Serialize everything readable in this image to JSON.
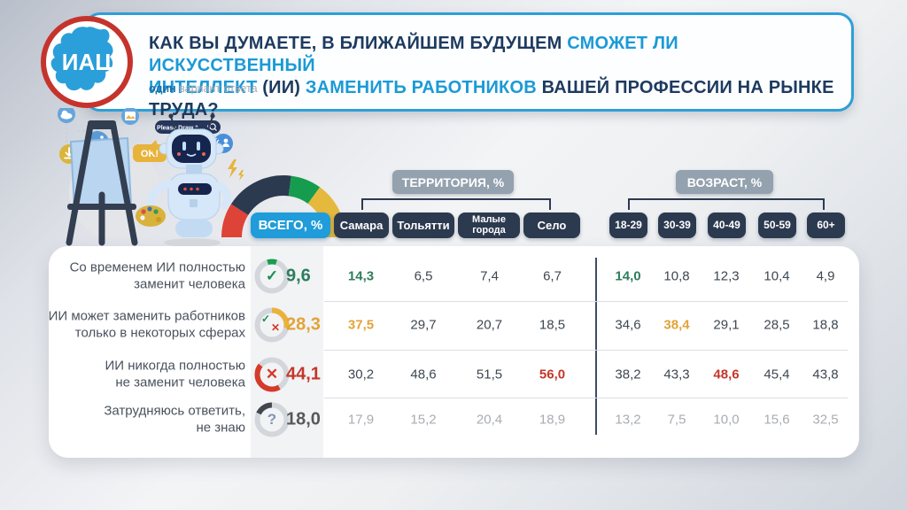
{
  "header": {
    "logo_text": "ИАЦ",
    "question_segments": [
      {
        "text": "КАК ВЫ ДУМАЕТЕ, В БЛИЖАЙШЕМ БУДУЩЕМ ",
        "color": "dark"
      },
      {
        "text": "СМОЖЕТ ЛИ ИСКУССТВЕННЫЙ",
        "color": "blue",
        "br": true
      },
      {
        "text": "ИНТЕЛЛЕКТ ",
        "color": "blue"
      },
      {
        "text": "(ИИ) ",
        "color": "dark"
      },
      {
        "text": "ЗАМЕНИТЬ РАБОТНИКОВ ",
        "color": "blue"
      },
      {
        "text": "ВАШЕЙ ПРОФЕССИИ НА РЫНКЕ ТРУДА?",
        "color": "dark"
      }
    ],
    "subtitle_bold": "один",
    "subtitle_rest": " вариант ответа"
  },
  "illustration": {
    "ok_label": "OK!",
    "search_label": "Please Draw “ ... ”"
  },
  "gauge": {
    "segments": [
      {
        "name": "red",
        "color": "#dd4337",
        "pct": 18
      },
      {
        "name": "navy",
        "color": "#2c3a50",
        "pct": 36
      },
      {
        "name": "green",
        "color": "#169c4f",
        "pct": 16
      },
      {
        "name": "yellow",
        "color": "#e5b93e",
        "pct": 30
      }
    ]
  },
  "table": {
    "total_header": "ВСЕГО, %",
    "groups": [
      {
        "label": "ТЕРРИТОРИЯ, %",
        "columns": [
          "Самара",
          "Тольятти",
          "Малые города",
          "Село"
        ]
      },
      {
        "label": "ВОЗРАСТ, %",
        "columns": [
          "18-29",
          "30-39",
          "40-49",
          "50-59",
          "60+"
        ]
      }
    ],
    "rows": [
      {
        "label_lines": [
          "Со временем ИИ полностью",
          "заменит человека"
        ],
        "icon": "check",
        "total": "9,6",
        "tone": "green",
        "ring": {
          "color": "#189c51",
          "start": 343,
          "pct": 9.6
        },
        "cells": [
          {
            "v": "14,3",
            "hl": "green"
          },
          {
            "v": "6,5"
          },
          {
            "v": "7,4"
          },
          {
            "v": "6,7"
          },
          {
            "v": "14,0",
            "hl": "green"
          },
          {
            "v": "10,8"
          },
          {
            "v": "12,3"
          },
          {
            "v": "10,4"
          },
          {
            "v": "4,9"
          }
        ]
      },
      {
        "label_lines": [
          "ИИ может заменить работников",
          "только в некоторых сферах"
        ],
        "icon": "check-x",
        "total": "28,3",
        "tone": "yellow",
        "ring": {
          "color": "#eab23a",
          "start": 0,
          "pct": 28.3
        },
        "cells": [
          {
            "v": "37,5",
            "hl": "yellow"
          },
          {
            "v": "29,7"
          },
          {
            "v": "20,7"
          },
          {
            "v": "18,5"
          },
          {
            "v": "34,6"
          },
          {
            "v": "38,4",
            "hl": "yellow"
          },
          {
            "v": "29,1"
          },
          {
            "v": "28,5"
          },
          {
            "v": "18,8"
          }
        ]
      },
      {
        "label_lines": [
          "ИИ никогда полностью",
          "не заменит человека"
        ],
        "icon": "x",
        "total": "44,1",
        "tone": "red",
        "ring": {
          "color": "#d53a2a",
          "start": 150,
          "pct": 44.1
        },
        "cells": [
          {
            "v": "30,2"
          },
          {
            "v": "48,6"
          },
          {
            "v": "51,5"
          },
          {
            "v": "56,0",
            "hl": "red"
          },
          {
            "v": "38,2"
          },
          {
            "v": "43,3"
          },
          {
            "v": "48,6",
            "hl": "red"
          },
          {
            "v": "45,4"
          },
          {
            "v": "43,8"
          }
        ]
      },
      {
        "label_lines": [
          "Затрудняюсь ответить,",
          "не знаю"
        ],
        "icon": "question",
        "total": "18,0",
        "tone": "dark",
        "muted": true,
        "ring": {
          "color": "#42474f",
          "start": 295,
          "pct": 18
        },
        "cells": [
          {
            "v": "17,9"
          },
          {
            "v": "15,2"
          },
          {
            "v": "20,4"
          },
          {
            "v": "18,9"
          },
          {
            "v": "13,2"
          },
          {
            "v": "7,5"
          },
          {
            "v": "10,0"
          },
          {
            "v": "15,6"
          },
          {
            "v": "32,5"
          }
        ]
      }
    ]
  },
  "chart_data": {
    "type": "table",
    "title": "КАК ВЫ ДУМАЕТЕ, В БЛИЖАЙШЕМ БУДУЩЕМ СМОЖЕТ ЛИ ИСКУССТВЕННЫЙ ИНТЕЛЛЕКТ (ИИ) ЗАМЕНИТЬ РАБОТНИКОВ ВАШЕЙ ПРОФЕССИИ НА РЫНКЕ ТРУДА?",
    "subtitle": "один вариант ответа",
    "columns": [
      "ВСЕГО, %",
      "Самара",
      "Тольятти",
      "Малые города",
      "Село",
      "18-29",
      "30-39",
      "40-49",
      "50-59",
      "60+"
    ],
    "column_groups": {
      "ТЕРРИТОРИЯ, %": [
        "Самара",
        "Тольятти",
        "Малые города",
        "Село"
      ],
      "ВОЗРАСТ, %": [
        "18-29",
        "30-39",
        "40-49",
        "50-59",
        "60+"
      ]
    },
    "rows": [
      {
        "label": "Со временем ИИ полностью заменит человека",
        "values": [
          9.6,
          14.3,
          6.5,
          7.4,
          6.7,
          14.0,
          10.8,
          12.3,
          10.4,
          4.9
        ]
      },
      {
        "label": "ИИ может заменить работников только в некоторых сферах",
        "values": [
          28.3,
          37.5,
          29.7,
          20.7,
          18.5,
          34.6,
          38.4,
          29.1,
          28.5,
          18.8
        ]
      },
      {
        "label": "ИИ никогда полностью не заменит человека",
        "values": [
          44.1,
          30.2,
          48.6,
          51.5,
          56.0,
          38.2,
          43.3,
          48.6,
          45.4,
          43.8
        ]
      },
      {
        "label": "Затрудняюсь ответить, не знаю",
        "values": [
          18.0,
          17.9,
          15.2,
          20.4,
          18.9,
          13.2,
          7.5,
          10.0,
          15.6,
          32.5
        ]
      }
    ]
  },
  "colors": {
    "accent_blue": "#1b9ad6",
    "dark_blue": "#1d3a5f",
    "navy": "#2c3a50",
    "gray_pill": "#94a1ae",
    "total_pill": "#1f9cd9",
    "green": "#2e7d5b",
    "yellow": "#e2a337",
    "red": "#c4362a",
    "muted": "#a8acb2",
    "logo_red": "#c5342c",
    "logo_blue": "#2b9fd9"
  }
}
